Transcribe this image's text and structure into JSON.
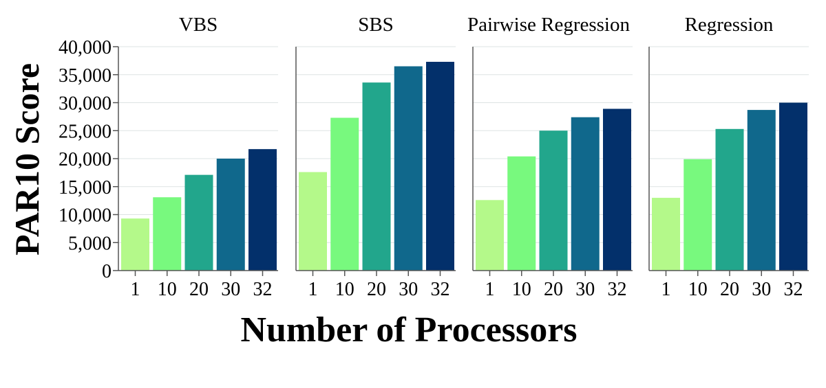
{
  "chart_data": {
    "type": "bar",
    "ylabel": "PAR10 Score",
    "xlabel": "Number of Processors",
    "ylim": [
      0,
      40000
    ],
    "yticks": [
      0,
      5000,
      10000,
      15000,
      20000,
      25000,
      30000,
      35000,
      40000
    ],
    "ytick_labels": [
      "0",
      "5,000",
      "10,000",
      "15,000",
      "20,000",
      "25,000",
      "30,000",
      "35,000",
      "40,000"
    ],
    "grid": true,
    "categories": [
      "1",
      "10",
      "20",
      "30",
      "32"
    ],
    "colors": [
      "#b4f98a",
      "#78f97e",
      "#22a68c",
      "#10688c",
      "#03306b"
    ],
    "panels": [
      {
        "title": "VBS",
        "values": [
          9300,
          13100,
          17100,
          20000,
          21700
        ]
      },
      {
        "title": "SBS",
        "values": [
          17600,
          27300,
          33600,
          36500,
          37300
        ]
      },
      {
        "title": "Pairwise Regression",
        "values": [
          12600,
          20400,
          25000,
          27400,
          28900
        ]
      },
      {
        "title": "Regression",
        "values": [
          13000,
          19900,
          25300,
          28700,
          30000
        ]
      }
    ]
  }
}
